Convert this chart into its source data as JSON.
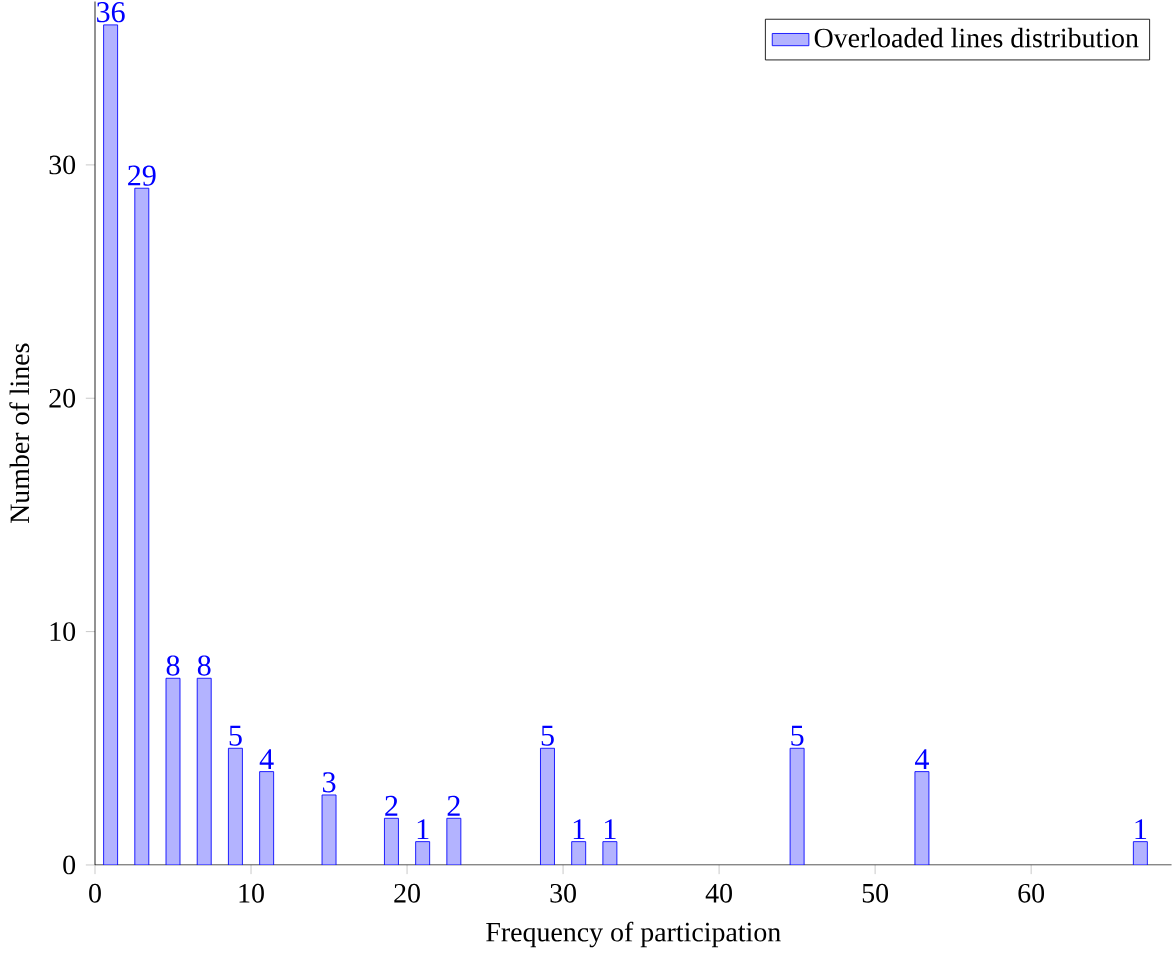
{
  "chart_data": {
    "type": "bar",
    "xlabel": "Frequency of participation",
    "ylabel": "Number of lines",
    "x": [
      1,
      3,
      5,
      7,
      9,
      11,
      15,
      19,
      21,
      23,
      29,
      31,
      33,
      45,
      53,
      67
    ],
    "series": [
      {
        "name": "Overloaded lines distribution",
        "color": "#b3b3ff",
        "values": [
          36,
          29,
          8,
          8,
          5,
          4,
          3,
          2,
          1,
          2,
          5,
          1,
          1,
          5,
          4,
          1
        ]
      }
    ],
    "xlim": [
      0,
      69
    ],
    "ylim": [
      0,
      37
    ],
    "xticks": [
      0,
      10,
      20,
      30,
      40,
      50,
      60
    ],
    "yticks": [
      0,
      10,
      20,
      30
    ],
    "data_labels": true,
    "legend": "top right"
  }
}
